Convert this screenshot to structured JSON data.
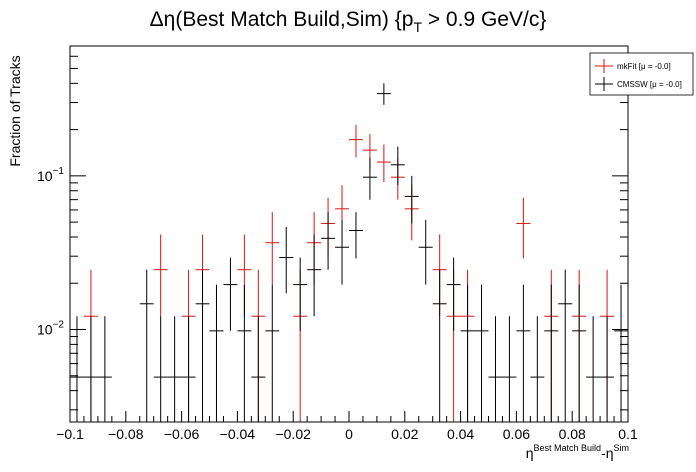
{
  "chart_data": {
    "type": "scatter",
    "title": {
      "main": "Δη(Best Match Build,Sim) {p",
      "sub": "T",
      "tail": " > 0.9 GeV/c}"
    },
    "xlabel": {
      "base1": "η",
      "sup1": "Best Match Build",
      "base2": "-η",
      "sup2": "Sim"
    },
    "ylabel": "Fraction of Tracks",
    "xlim": [
      -0.1,
      0.1
    ],
    "ylim": [
      0.0025,
      0.7
    ],
    "yscale": "log",
    "bin_width": 0.005,
    "x_ticks": [
      {
        "v": -0.1,
        "label": "−0.1"
      },
      {
        "v": -0.08,
        "label": "−0.08"
      },
      {
        "v": -0.06,
        "label": "−0.06"
      },
      {
        "v": -0.04,
        "label": "−0.04"
      },
      {
        "v": -0.02,
        "label": "−0.02"
      },
      {
        "v": 0.0,
        "label": "0"
      },
      {
        "v": 0.02,
        "label": "0.02"
      },
      {
        "v": 0.04,
        "label": "0.04"
      },
      {
        "v": 0.06,
        "label": "0.06"
      },
      {
        "v": 0.08,
        "label": "0.08"
      },
      {
        "v": 0.1,
        "label": "0.1"
      }
    ],
    "y_ticks": [
      {
        "v": 0.1,
        "base": "10",
        "exp": "−1"
      },
      {
        "v": 0.01,
        "base": "10",
        "exp": "−2"
      }
    ],
    "legend_position": "top-right",
    "series": [
      {
        "name": "mkFit",
        "legend_label": "mkFit  [μ = -0.0]",
        "color": "#d9140f",
        "points": [
          {
            "x": -0.0925,
            "y": 0.0122,
            "lo": 0.0025,
            "hi": 0.0245
          },
          {
            "x": -0.0675,
            "y": 0.0245,
            "lo": 0.0122,
            "hi": 0.0415
          },
          {
            "x": -0.0575,
            "y": 0.0122,
            "lo": 0.0025,
            "hi": 0.0245
          },
          {
            "x": -0.0525,
            "y": 0.0245,
            "lo": 0.0122,
            "hi": 0.0415
          },
          {
            "x": -0.0375,
            "y": 0.0245,
            "lo": 0.0122,
            "hi": 0.0415
          },
          {
            "x": -0.0325,
            "y": 0.0122,
            "lo": 0.0025,
            "hi": 0.0245
          },
          {
            "x": -0.0275,
            "y": 0.0367,
            "lo": 0.0196,
            "hi": 0.058
          },
          {
            "x": -0.0175,
            "y": 0.0122,
            "lo": 0.0025,
            "hi": 0.0245
          },
          {
            "x": -0.0125,
            "y": 0.0367,
            "lo": 0.0196,
            "hi": 0.058
          },
          {
            "x": -0.0075,
            "y": 0.049,
            "lo": 0.029,
            "hi": 0.072
          },
          {
            "x": -0.0025,
            "y": 0.061,
            "lo": 0.038,
            "hi": 0.087
          },
          {
            "x": 0.0025,
            "y": 0.172,
            "lo": 0.132,
            "hi": 0.215
          },
          {
            "x": 0.0075,
            "y": 0.147,
            "lo": 0.111,
            "hi": 0.187
          },
          {
            "x": 0.0125,
            "y": 0.123,
            "lo": 0.091,
            "hi": 0.16
          },
          {
            "x": 0.0175,
            "y": 0.098,
            "lo": 0.07,
            "hi": 0.131
          },
          {
            "x": 0.0225,
            "y": 0.061,
            "lo": 0.038,
            "hi": 0.087
          },
          {
            "x": 0.0325,
            "y": 0.0245,
            "lo": 0.0122,
            "hi": 0.0415
          },
          {
            "x": 0.0375,
            "y": 0.0122,
            "lo": 0.0025,
            "hi": 0.0245
          },
          {
            "x": 0.0425,
            "y": 0.0122,
            "lo": 0.0025,
            "hi": 0.0245
          },
          {
            "x": 0.0625,
            "y": 0.049,
            "lo": 0.029,
            "hi": 0.072
          },
          {
            "x": 0.0725,
            "y": 0.0122,
            "lo": 0.0025,
            "hi": 0.0245
          },
          {
            "x": 0.0825,
            "y": 0.0122,
            "lo": 0.0025,
            "hi": 0.0245
          },
          {
            "x": 0.0925,
            "y": 0.0122,
            "lo": 0.0025,
            "hi": 0.0245
          }
        ]
      },
      {
        "name": "CMSSW",
        "legend_label": "CMSSW  [μ = -0.0]",
        "color": "#000000",
        "points": [
          {
            "x": -0.0975,
            "y": 0.0049,
            "lo": 0.0025,
            "hi": 0.0122
          },
          {
            "x": -0.0925,
            "y": 0.0049,
            "lo": 0.0025,
            "hi": 0.0122
          },
          {
            "x": -0.0875,
            "y": 0.0049,
            "lo": 0.0025,
            "hi": 0.0122
          },
          {
            "x": -0.0725,
            "y": 0.0147,
            "lo": 0.0025,
            "hi": 0.0245
          },
          {
            "x": -0.0675,
            "y": 0.0049,
            "lo": 0.0025,
            "hi": 0.0122
          },
          {
            "x": -0.0625,
            "y": 0.0049,
            "lo": 0.0025,
            "hi": 0.0122
          },
          {
            "x": -0.0575,
            "y": 0.0049,
            "lo": 0.0025,
            "hi": 0.0122
          },
          {
            "x": -0.0525,
            "y": 0.0147,
            "lo": 0.0025,
            "hi": 0.0245
          },
          {
            "x": -0.0475,
            "y": 0.0098,
            "lo": 0.0025,
            "hi": 0.0196
          },
          {
            "x": -0.0425,
            "y": 0.0196,
            "lo": 0.0098,
            "hi": 0.0294
          },
          {
            "x": -0.0375,
            "y": 0.0098,
            "lo": 0.0025,
            "hi": 0.0196
          },
          {
            "x": -0.0325,
            "y": 0.0049,
            "lo": 0.0025,
            "hi": 0.0122
          },
          {
            "x": -0.0275,
            "y": 0.0098,
            "lo": 0.0025,
            "hi": 0.0196
          },
          {
            "x": -0.0225,
            "y": 0.0294,
            "lo": 0.0172,
            "hi": 0.0465
          },
          {
            "x": -0.0175,
            "y": 0.0196,
            "lo": 0.0098,
            "hi": 0.0294
          },
          {
            "x": -0.0125,
            "y": 0.0245,
            "lo": 0.0122,
            "hi": 0.0415
          },
          {
            "x": -0.0075,
            "y": 0.0392,
            "lo": 0.0245,
            "hi": 0.058
          },
          {
            "x": -0.0025,
            "y": 0.0343,
            "lo": 0.0196,
            "hi": 0.0517
          },
          {
            "x": 0.0025,
            "y": 0.0441,
            "lo": 0.029,
            "hi": 0.058
          },
          {
            "x": 0.0075,
            "y": 0.098,
            "lo": 0.07,
            "hi": 0.131
          },
          {
            "x": 0.0125,
            "y": 0.343,
            "lo": 0.29,
            "hi": 0.4
          },
          {
            "x": 0.0175,
            "y": 0.118,
            "lo": 0.087,
            "hi": 0.155
          },
          {
            "x": 0.0225,
            "y": 0.0735,
            "lo": 0.049,
            "hi": 0.1
          },
          {
            "x": 0.0275,
            "y": 0.0343,
            "lo": 0.0196,
            "hi": 0.0517
          },
          {
            "x": 0.0325,
            "y": 0.0147,
            "lo": 0.0025,
            "hi": 0.0245
          },
          {
            "x": 0.0375,
            "y": 0.0196,
            "lo": 0.0098,
            "hi": 0.0294
          },
          {
            "x": 0.0425,
            "y": 0.0098,
            "lo": 0.0025,
            "hi": 0.0196
          },
          {
            "x": 0.0475,
            "y": 0.0098,
            "lo": 0.0025,
            "hi": 0.0196
          },
          {
            "x": 0.0525,
            "y": 0.0049,
            "lo": 0.0025,
            "hi": 0.0122
          },
          {
            "x": 0.0575,
            "y": 0.0049,
            "lo": 0.0025,
            "hi": 0.0122
          },
          {
            "x": 0.0625,
            "y": 0.0098,
            "lo": 0.0025,
            "hi": 0.0196
          },
          {
            "x": 0.0675,
            "y": 0.0049,
            "lo": 0.0025,
            "hi": 0.0122
          },
          {
            "x": 0.0725,
            "y": 0.0098,
            "lo": 0.0025,
            "hi": 0.0196
          },
          {
            "x": 0.0775,
            "y": 0.0147,
            "lo": 0.0025,
            "hi": 0.0245
          },
          {
            "x": 0.0825,
            "y": 0.0098,
            "lo": 0.0025,
            "hi": 0.0196
          },
          {
            "x": 0.0875,
            "y": 0.0049,
            "lo": 0.0025,
            "hi": 0.0122
          },
          {
            "x": 0.0925,
            "y": 0.0049,
            "lo": 0.0025,
            "hi": 0.0122
          },
          {
            "x": 0.0975,
            "y": 0.0098,
            "lo": 0.0025,
            "hi": 0.0196
          }
        ]
      }
    ]
  }
}
